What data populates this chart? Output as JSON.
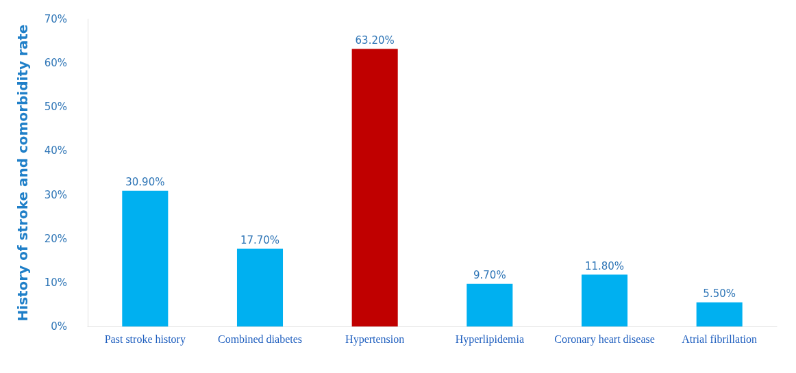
{
  "chart_data": {
    "type": "bar",
    "ylabel": "History of stroke and comorbidity rate",
    "categories": [
      "Past stroke history",
      "Combined diabetes",
      "Hypertension",
      "Hyperlipidemia",
      "Coronary heart disease",
      "Atrial fibrillation"
    ],
    "values": [
      30.9,
      17.7,
      63.2,
      9.7,
      11.8,
      5.5
    ],
    "colors": [
      "#00b0f0",
      "#00b0f0",
      "#c00000",
      "#00b0f0",
      "#00b0f0",
      "#00b0f0"
    ],
    "value_labels": [
      "30.90%",
      "17.70%",
      "63.20%",
      "9.70%",
      "11.80%",
      "5.50%"
    ],
    "ylim": [
      0,
      70
    ],
    "yticks": [
      {
        "value": 0,
        "label": "0%"
      },
      {
        "value": 10,
        "label": "10%"
      },
      {
        "value": 20,
        "label": "20%"
      },
      {
        "value": 30,
        "label": "30%"
      },
      {
        "value": 40,
        "label": "40%"
      },
      {
        "value": 50,
        "label": "50%"
      },
      {
        "value": 60,
        "label": "60%"
      },
      {
        "value": 70,
        "label": "70%"
      }
    ]
  }
}
